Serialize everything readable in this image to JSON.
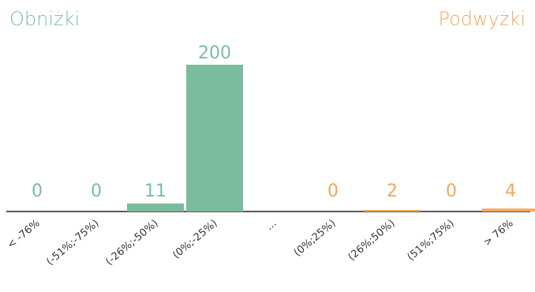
{
  "labels": {
    "left": "Obniżki",
    "right": "Podwyżki"
  },
  "colors": {
    "decrease": "#7bbc9f",
    "increase": "#f4a85a",
    "axis": "#222222"
  },
  "chart_data": {
    "type": "bar",
    "title": "",
    "xlabel": "",
    "ylabel": "",
    "categories": [
      "< -76%",
      "(-51%;-75%)",
      "(-26%;-50%)",
      "(0%;-25%)",
      "...",
      "(0%;25%)",
      "(26%;50%)",
      "(51%;75%)",
      "> 76%"
    ],
    "values": [
      0,
      0,
      11,
      200,
      null,
      0,
      2,
      0,
      4
    ],
    "data_labels": [
      "0",
      "0",
      "11",
      "200",
      "",
      "0",
      "2",
      "0",
      "4"
    ],
    "groups": [
      "decrease",
      "decrease",
      "decrease",
      "decrease",
      "gap",
      "increase",
      "increase",
      "increase",
      "increase"
    ],
    "ylim": [
      0,
      200
    ],
    "grid": false
  }
}
